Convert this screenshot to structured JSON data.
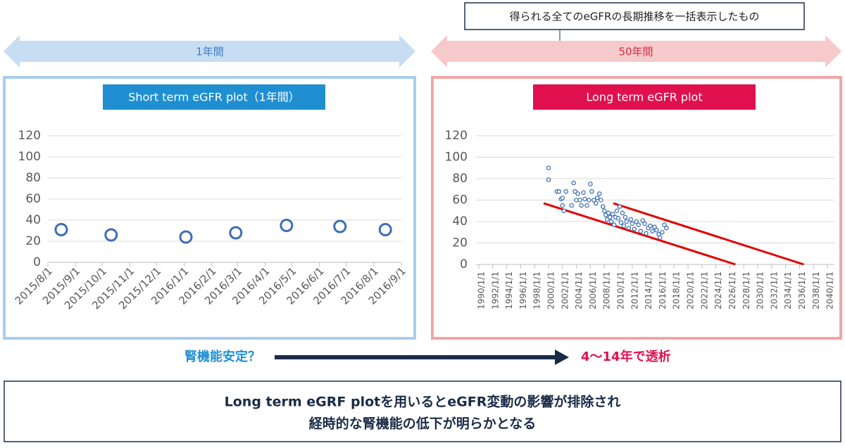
{
  "callout": "得られる全てのeGFRの長期推移を一括表示したもの",
  "ranges": [
    "1年間",
    "50年間"
  ],
  "chart_data": [
    {
      "type": "scatter",
      "title": "Short term eGFR plot（1年間）",
      "x": [
        "2015/8/16",
        "2015/10/11",
        "2016/1/3",
        "2016/2/28",
        "2016/4/25",
        "2016/6/24",
        "2016/8/14"
      ],
      "values": [
        31,
        26,
        24,
        28,
        35,
        34,
        31
      ],
      "color": "#3d6eb4",
      "xlim": [
        "2015/8/1",
        "2016/9/1"
      ],
      "xticks": [
        "2015/8/1",
        "2015/9/1",
        "2015/10/1",
        "2015/11/1",
        "2015/12/1",
        "2016/1/1",
        "2016/2/1",
        "2016/3/1",
        "2016/4/1",
        "2016/5/1",
        "2016/6/1",
        "2016/7/1",
        "2016/8/1",
        "2016/9/1"
      ],
      "ylim": [
        0,
        120
      ],
      "yticks": [
        0,
        20,
        40,
        60,
        80,
        100,
        120
      ],
      "grid": true
    },
    {
      "type": "scatter",
      "title": "Long term eGFR plot",
      "x": [
        2000.0,
        2000.0,
        2001.2,
        2001.5,
        2001.8,
        2002.0,
        2002.2,
        2002.0,
        2002.5,
        2003.3,
        2003.6,
        2003.8,
        2004.0,
        2004.2,
        2004.5,
        2004.7,
        2005.0,
        2005.2,
        2005.5,
        2005.8,
        2006.0,
        2006.2,
        2006.5,
        2006.8,
        2007.0,
        2007.3,
        2007.5,
        2007.8,
        2008.0,
        2008.2,
        2008.4,
        2008.6,
        2008.8,
        2009.0,
        2009.2,
        2009.4,
        2009.6,
        2009.8,
        2010.0,
        2010.2,
        2010.4,
        2010.6,
        2010.8,
        2011.0,
        2011.2,
        2011.5,
        2011.8,
        2012.0,
        2012.3,
        2012.6,
        2012.9,
        2013.2,
        2013.5,
        2013.8,
        2014.0,
        2014.3,
        2014.6,
        2014.9,
        2015.2,
        2015.5,
        2015.8,
        2016.0,
        2016.3,
        2016.6,
        2016.9
      ],
      "values": [
        90,
        79,
        68,
        68,
        61,
        55,
        50,
        62,
        68,
        55,
        76,
        68,
        60,
        66,
        60,
        55,
        67,
        61,
        55,
        60,
        75,
        68,
        60,
        57,
        62,
        66,
        60,
        54,
        50,
        46,
        42,
        48,
        44,
        40,
        47,
        37,
        44,
        50,
        43,
        54,
        39,
        48,
        36,
        44,
        40,
        34,
        42,
        38,
        33,
        40,
        37,
        31,
        41,
        38,
        29,
        34,
        36,
        31,
        35,
        32,
        28,
        25,
        30,
        37,
        34
      ],
      "color": "#3d6eb4",
      "xlim": [
        1989.6,
        2041
      ],
      "xticks": [
        {
          "value": 1990,
          "label": "1990/1/1"
        },
        {
          "value": 1992,
          "label": "1992/1/1"
        },
        {
          "value": 1994,
          "label": "1994/1/1"
        },
        {
          "value": 1996,
          "label": "1996/1/1"
        },
        {
          "value": 1998,
          "label": "1998/1/1"
        },
        {
          "value": 2000,
          "label": "2000/1/1"
        },
        {
          "value": 2002,
          "label": "2002/1/1"
        },
        {
          "value": 2004,
          "label": "2004/1/1"
        },
        {
          "value": 2006,
          "label": "2006/1/1"
        },
        {
          "value": 2008,
          "label": "2008/1/1"
        },
        {
          "value": 2010,
          "label": "2010/1/1"
        },
        {
          "value": 2012,
          "label": "2012/1/1"
        },
        {
          "value": 2014,
          "label": "2014/1/1"
        },
        {
          "value": 2016,
          "label": "2016/1/1"
        },
        {
          "value": 2018,
          "label": "2018/1/1"
        },
        {
          "value": 2020,
          "label": "2020/1/1"
        },
        {
          "value": 2022,
          "label": "2022/1/1"
        },
        {
          "value": 2024,
          "label": "2024/1/1"
        },
        {
          "value": 2026,
          "label": "2026/1/1"
        },
        {
          "value": 2028,
          "label": "2028/1/1"
        },
        {
          "value": 2030,
          "label": "2030/1/1"
        },
        {
          "value": 2032,
          "label": "2032/1/1"
        },
        {
          "value": 2034,
          "label": "2034/1/1"
        },
        {
          "value": 2036,
          "label": "2036/1/1"
        },
        {
          "value": 2038,
          "label": "2038/1/1"
        },
        {
          "value": 2040,
          "label": "2040/1/1"
        }
      ],
      "ylim": [
        0,
        120
      ],
      "yticks": [
        0,
        20,
        40,
        60,
        80,
        100,
        120
      ],
      "grid": true,
      "trend_lines": [
        {
          "color": "#e30000",
          "x": [
            1999.3,
            2026.8
          ],
          "values": [
            57,
            0
          ]
        },
        {
          "color": "#e30000",
          "x": [
            2009.3,
            2036.6
          ],
          "values": [
            57,
            0
          ]
        }
      ]
    }
  ],
  "flow": {
    "from": "腎機能安定？",
    "to": "4〜14年で透析"
  },
  "conclusion": [
    "Long term eGRF plotを用いるとeGFR変動の影響が排除され",
    "経時的な腎機能の低下が明らかとなる"
  ]
}
